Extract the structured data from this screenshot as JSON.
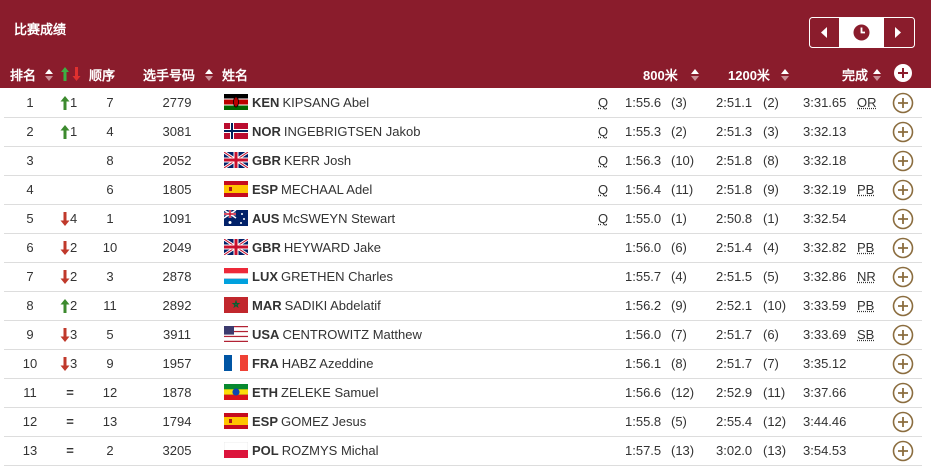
{
  "header": {
    "title": "比赛成绩"
  },
  "table": {
    "columns": [
      "排名",
      "顺序",
      "选手号码",
      "姓名",
      "800米",
      "1200米",
      "完成"
    ],
    "rows": [
      {
        "rank": 1,
        "change": "1",
        "order": 7,
        "bib": 2779,
        "country": "KEN",
        "name": "KIPSANG Abel",
        "qualified": "Q",
        "split_800": "1:55.6",
        "place_800": "(3)",
        "split_1200": "2:51.1",
        "place_1200": "(2)",
        "result": "3:31.65",
        "record": "OR"
      },
      {
        "rank": 2,
        "change": "1",
        "order": 4,
        "bib": 3081,
        "country": "NOR",
        "name": "INGEBRIGTSEN Jakob",
        "qualified": "Q",
        "split_800": "1:55.3",
        "place_800": "(2)",
        "split_1200": "2:51.3",
        "place_1200": "(3)",
        "result": "3:32.13"
      },
      {
        "rank": 3,
        "order": 8,
        "bib": 2052,
        "country": "GBR",
        "name": "KERR Josh",
        "qualified": "Q",
        "split_800": "1:56.3",
        "place_800": "(10)",
        "split_1200": "2:51.8",
        "place_1200": "(8)",
        "result": "3:32.18"
      },
      {
        "rank": 4,
        "order": 6,
        "bib": 1805,
        "country": "ESP",
        "name": "MECHAAL Adel",
        "qualified": "Q",
        "split_800": "1:56.4",
        "place_800": "(11)",
        "split_1200": "2:51.8",
        "place_1200": "(9)",
        "result": "3:32.19",
        "record": "PB"
      },
      {
        "rank": 5,
        "change": "4",
        "order": 1,
        "bib": 1091,
        "country": "AUS",
        "name": "McSWEYN Stewart",
        "qualified": "Q",
        "split_800": "1:55.0",
        "place_800": "(1)",
        "split_1200": "2:50.8",
        "place_1200": "(1)",
        "result": "3:32.54"
      },
      {
        "rank": 6,
        "change": "2",
        "order": 10,
        "bib": 2049,
        "country": "GBR",
        "name": "HEYWARD Jake",
        "split_800": "1:56.0",
        "place_800": "(6)",
        "split_1200": "2:51.4",
        "place_1200": "(4)",
        "result": "3:32.82",
        "record": "PB"
      },
      {
        "rank": 7,
        "change": "2",
        "order": 3,
        "bib": 2878,
        "country": "LUX",
        "name": "GRETHEN Charles",
        "split_800": "1:55.7",
        "place_800": "(4)",
        "split_1200": "2:51.5",
        "place_1200": "(5)",
        "result": "3:32.86",
        "record": "NR"
      },
      {
        "rank": 8,
        "change": "2",
        "order": 11,
        "bib": 2892,
        "country": "MAR",
        "name": "SADIKI Abdelatif",
        "split_800": "1:56.2",
        "place_800": "(9)",
        "split_1200": "2:52.1",
        "place_1200": "(10)",
        "result": "3:33.59",
        "record": "PB"
      },
      {
        "rank": 9,
        "change": "3",
        "order": 5,
        "bib": 3911,
        "country": "USA",
        "name": "CENTROWITZ Matthew",
        "split_800": "1:56.0",
        "place_800": "(7)",
        "split_1200": "2:51.7",
        "place_1200": "(6)",
        "result": "3:33.69",
        "record": "SB"
      },
      {
        "rank": 10,
        "change": "3",
        "order": 9,
        "bib": 1957,
        "country": "FRA",
        "name": "HABZ Azeddine",
        "split_800": "1:56.1",
        "place_800": "(8)",
        "split_1200": "2:51.7",
        "place_1200": "(7)",
        "result": "3:35.12"
      },
      {
        "rank": 11,
        "change": "=",
        "order": 12,
        "bib": 1878,
        "country": "ETH",
        "name": "ZELEKE Samuel",
        "split_800": "1:56.6",
        "place_800": "(12)",
        "split_1200": "2:52.9",
        "place_1200": "(11)",
        "result": "3:37.66"
      },
      {
        "rank": 12,
        "change": "=",
        "order": 13,
        "bib": 1794,
        "country": "ESP",
        "name": "GOMEZ Jesus",
        "split_800": "1:55.8",
        "place_800": "(5)",
        "split_1200": "2:55.4",
        "place_1200": "(12)",
        "result": "3:44.46"
      },
      {
        "rank": 13,
        "change": "=",
        "order": 2,
        "bib": 3205,
        "country": "POL",
        "name": "ROZMYS Michal",
        "split_800": "1:57.5",
        "place_800": "(13)",
        "split_1200": "3:02.0",
        "place_1200": "(13)",
        "result": "3:54.53"
      }
    ]
  }
}
